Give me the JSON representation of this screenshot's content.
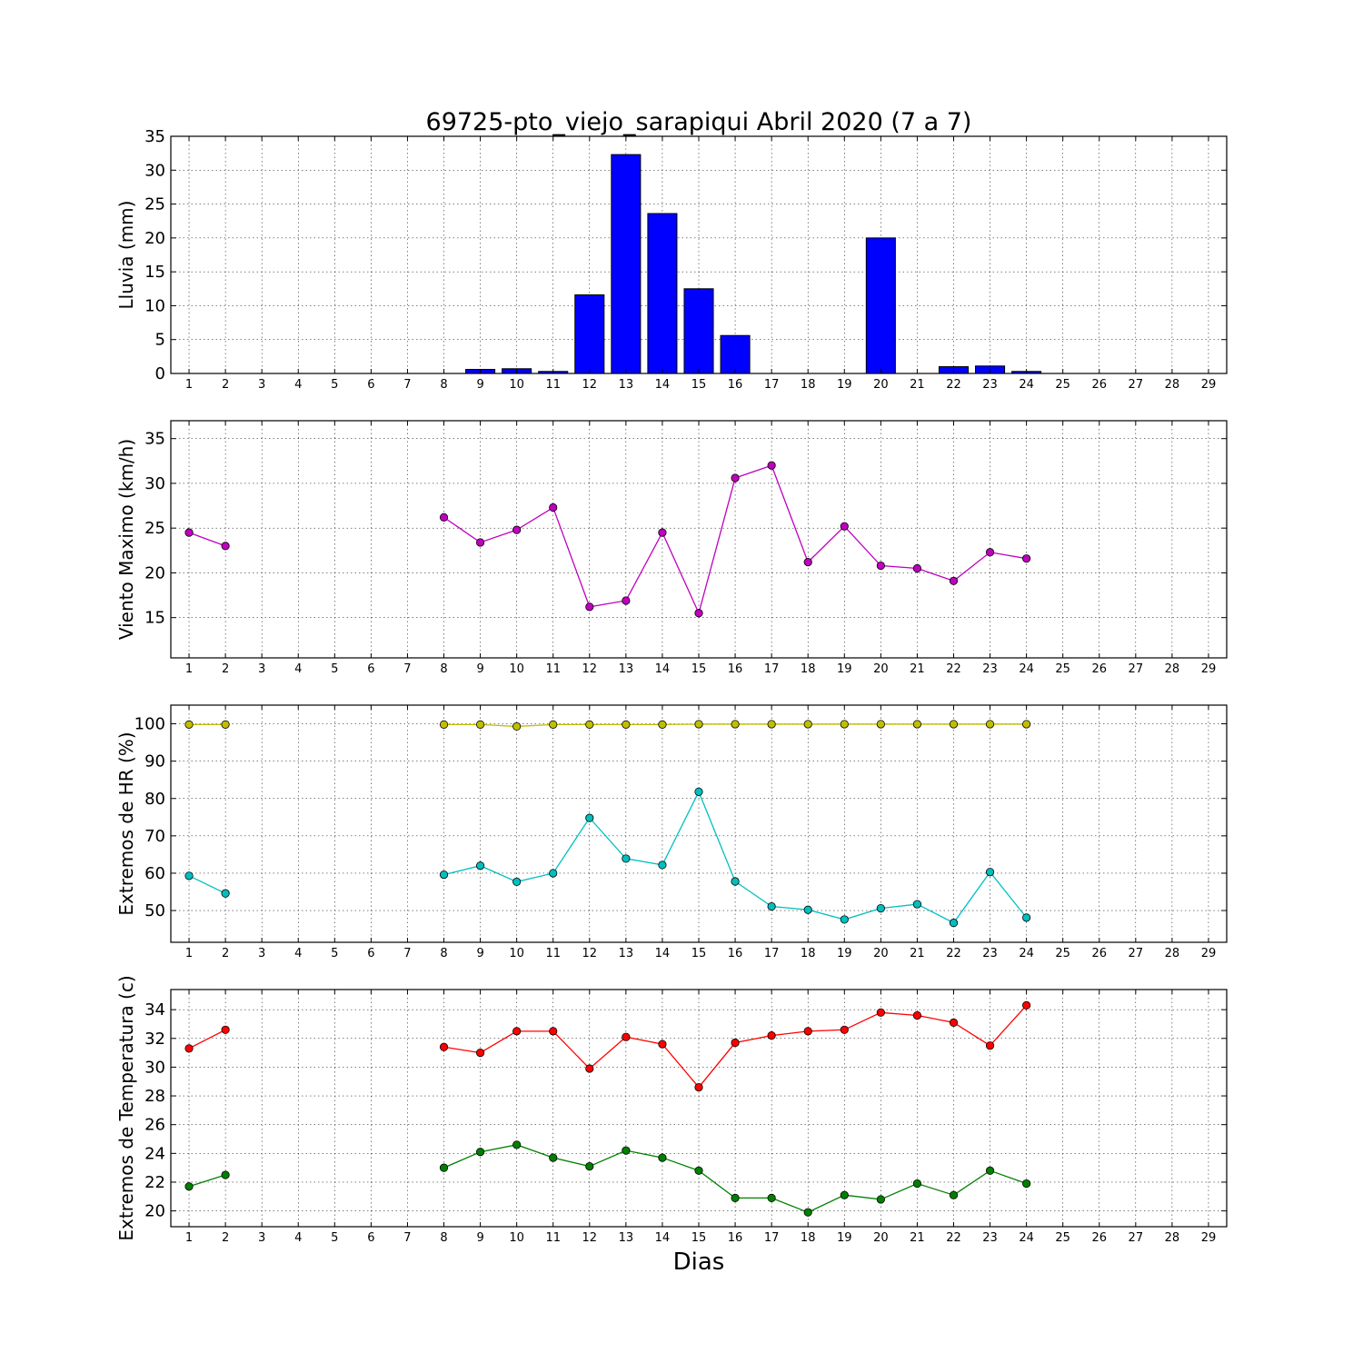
{
  "figure": {
    "title": "69725-pto_viejo_sarapiqui Abril 2020  (7 a 7)",
    "xlabel": "Dias"
  },
  "chart_data": [
    {
      "type": "bar",
      "ylabel": "Lluvia (mm)",
      "xlim": [
        0.5,
        29.5
      ],
      "ylim": [
        0,
        35
      ],
      "yticks": [
        0,
        5,
        10,
        15,
        20,
        25,
        30,
        35
      ],
      "x": [
        1,
        2,
        3,
        4,
        5,
        6,
        7,
        8,
        9,
        10,
        11,
        12,
        13,
        14,
        15,
        16,
        17,
        18,
        19,
        20,
        21,
        22,
        23,
        24
      ],
      "values": [
        0,
        0,
        0,
        0,
        0,
        0,
        0,
        0,
        0.6,
        0.7,
        0.3,
        11.6,
        32.3,
        23.6,
        12.5,
        5.6,
        0,
        0,
        0,
        20.0,
        0,
        1.0,
        1.1,
        0.3
      ],
      "color": "#0000ff",
      "grid": true
    },
    {
      "type": "line",
      "ylabel": "Viento Maximo (km/h)",
      "xlim": [
        0.5,
        29.5
      ],
      "ylim": [
        10.5,
        37
      ],
      "yticks": [
        15,
        20,
        25,
        30,
        35
      ],
      "x": [
        1,
        2,
        3,
        4,
        5,
        6,
        7,
        8,
        9,
        10,
        11,
        12,
        13,
        14,
        15,
        16,
        17,
        18,
        19,
        20,
        21,
        22,
        23,
        24
      ],
      "series": [
        {
          "values": [
            24.5,
            23.0,
            null,
            null,
            null,
            null,
            null,
            26.2,
            23.4,
            24.8,
            27.3,
            16.2,
            16.9,
            24.5,
            15.5,
            30.6,
            32.0,
            21.2,
            25.2,
            20.8,
            20.5,
            19.1,
            22.3,
            21.6
          ],
          "color": "#bf00bf"
        }
      ],
      "grid": true
    },
    {
      "type": "line",
      "ylabel": "Extremos de HR (%)",
      "xlim": [
        0.5,
        29.5
      ],
      "ylim": [
        41.5,
        105
      ],
      "yticks": [
        50,
        60,
        70,
        80,
        90,
        100
      ],
      "x": [
        1,
        2,
        3,
        4,
        5,
        6,
        7,
        8,
        9,
        10,
        11,
        12,
        13,
        14,
        15,
        16,
        17,
        18,
        19,
        20,
        21,
        22,
        23,
        24
      ],
      "series": [
        {
          "values": [
            99.8,
            99.8,
            null,
            null,
            null,
            null,
            null,
            99.8,
            99.8,
            99.3,
            99.8,
            99.8,
            99.8,
            99.8,
            99.9,
            99.9,
            99.9,
            99.9,
            99.9,
            99.9,
            99.9,
            99.9,
            99.9,
            99.9
          ],
          "color": "#bfbf00"
        },
        {
          "values": [
            59.3,
            54.6,
            null,
            null,
            null,
            null,
            null,
            59.6,
            62.0,
            57.7,
            60.0,
            74.8,
            63.9,
            62.2,
            81.8,
            57.8,
            51.1,
            50.2,
            47.6,
            50.6,
            51.7,
            46.7,
            60.3,
            48.1
          ],
          "color": "#00bfbf"
        }
      ],
      "grid": true
    },
    {
      "type": "line",
      "ylabel": "Extremos de Temperatura (c)",
      "xlim": [
        0.5,
        29.5
      ],
      "ylim": [
        18.9,
        35.4
      ],
      "yticks": [
        20,
        22,
        24,
        26,
        28,
        30,
        32,
        34
      ],
      "x": [
        1,
        2,
        3,
        4,
        5,
        6,
        7,
        8,
        9,
        10,
        11,
        12,
        13,
        14,
        15,
        16,
        17,
        18,
        19,
        20,
        21,
        22,
        23,
        24
      ],
      "series": [
        {
          "values": [
            31.3,
            32.6,
            null,
            null,
            null,
            null,
            null,
            31.4,
            31.0,
            32.5,
            32.5,
            29.9,
            32.1,
            31.6,
            28.6,
            31.7,
            32.2,
            32.5,
            32.6,
            33.8,
            33.6,
            33.1,
            31.5,
            34.3
          ],
          "color": "#ff0000"
        },
        {
          "values": [
            21.7,
            22.5,
            null,
            null,
            null,
            null,
            null,
            23.0,
            24.1,
            24.6,
            23.7,
            23.1,
            24.2,
            23.7,
            22.8,
            20.9,
            20.9,
            19.9,
            21.1,
            20.8,
            21.9,
            21.1,
            22.8,
            21.9
          ],
          "color": "#008000"
        }
      ],
      "grid": true
    }
  ]
}
